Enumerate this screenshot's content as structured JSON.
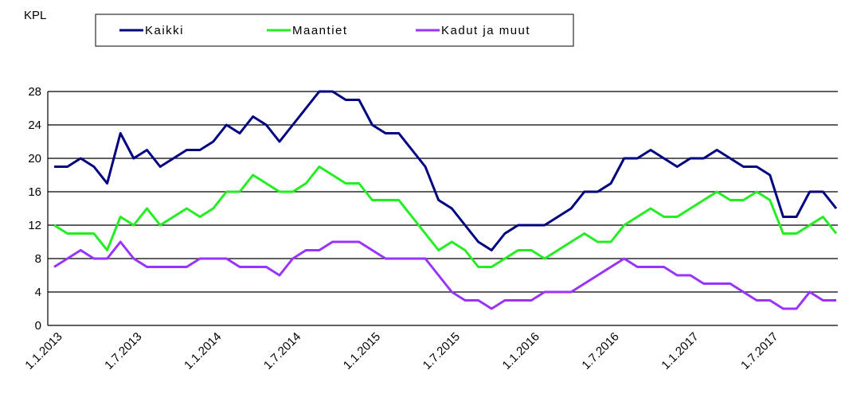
{
  "chart_data": {
    "type": "line",
    "y_label": "KPL",
    "categories": [
      "1.1.2013",
      null,
      null,
      null,
      null,
      null,
      "1.7.2013",
      null,
      null,
      null,
      null,
      null,
      "1.1.2014",
      null,
      null,
      null,
      null,
      null,
      "1.7.2014",
      null,
      null,
      null,
      null,
      null,
      "1.1.2015",
      null,
      null,
      null,
      null,
      null,
      "1.7.2015",
      null,
      null,
      null,
      null,
      null,
      "1.1.2016",
      null,
      null,
      null,
      null,
      null,
      "1.7.2016",
      null,
      null,
      null,
      null,
      null,
      "1.1.2017",
      null,
      null,
      null,
      null,
      null,
      "1.7.2017",
      null,
      null,
      null,
      null,
      null
    ],
    "series": [
      {
        "name": "Kaikki",
        "color": "#000080",
        "values": [
          19,
          19,
          20,
          19,
          17,
          23,
          20,
          21,
          19,
          20,
          21,
          21,
          22,
          24,
          23,
          25,
          24,
          22,
          24,
          26,
          28,
          28,
          27,
          27,
          24,
          23,
          23,
          21,
          19,
          15,
          14,
          12,
          10,
          9,
          11,
          12,
          12,
          12,
          13,
          14,
          16,
          16,
          17,
          20,
          20,
          21,
          20,
          19,
          20,
          20,
          21,
          20,
          19,
          19,
          18,
          13,
          13,
          16,
          16,
          14
        ]
      },
      {
        "name": "Maantiet",
        "color": "#22ee22",
        "values": [
          12,
          11,
          11,
          11,
          9,
          13,
          12,
          14,
          12,
          13,
          14,
          13,
          14,
          16,
          16,
          18,
          17,
          16,
          16,
          17,
          19,
          18,
          17,
          17,
          15,
          15,
          15,
          13,
          11,
          9,
          10,
          9,
          7,
          7,
          8,
          9,
          9,
          8,
          9,
          10,
          11,
          10,
          10,
          12,
          13,
          14,
          13,
          13,
          14,
          15,
          16,
          15,
          15,
          16,
          15,
          11,
          11,
          12,
          13,
          11
        ]
      },
      {
        "name": "Kadut ja muut",
        "color": "#9933ff",
        "values": [
          7,
          8,
          9,
          8,
          8,
          10,
          8,
          7,
          7,
          7,
          7,
          8,
          8,
          8,
          7,
          7,
          7,
          6,
          8,
          9,
          9,
          10,
          10,
          10,
          9,
          8,
          8,
          8,
          8,
          6,
          4,
          3,
          3,
          2,
          3,
          3,
          3,
          4,
          4,
          4,
          5,
          6,
          7,
          8,
          7,
          7,
          7,
          6,
          6,
          5,
          5,
          5,
          4,
          3,
          3,
          2,
          2,
          4,
          3,
          3
        ]
      }
    ],
    "ylim": [
      0,
      28
    ],
    "yticks": [
      0,
      4,
      8,
      12,
      16,
      20,
      24,
      28
    ],
    "grid": true,
    "legend": "top"
  }
}
